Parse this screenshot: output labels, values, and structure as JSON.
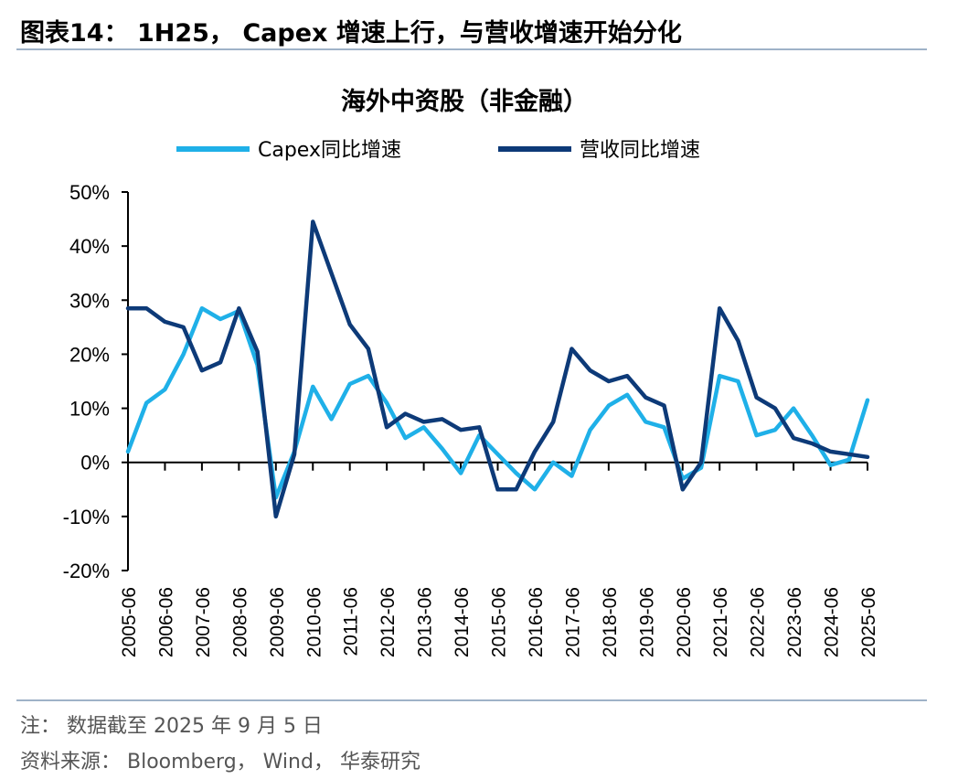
{
  "figure_title": "图表14：  1H25， Capex 增速上行，与营收增速开始分化",
  "footnote": "注：  数据截至 2025 年 9 月 5 日",
  "source": "资料来源：  Bloomberg， Wind， 华泰研究",
  "colors": {
    "capex": "#1fb0e8",
    "revenue": "#0d3a78",
    "rule": "#9fb2c8"
  },
  "chart_data": {
    "type": "line",
    "title": "海外中资股（非金融）",
    "xlabel": "",
    "ylabel": "",
    "ylim": [
      -20,
      50
    ],
    "ytick_values": [
      -20,
      -10,
      0,
      10,
      20,
      30,
      40,
      50
    ],
    "ytick_labels": [
      "-20%",
      "-10%",
      "0%",
      "10%",
      "20%",
      "30%",
      "40%",
      "50%"
    ],
    "x_labels": [
      "2005-06",
      "2006-06",
      "2007-06",
      "2008-06",
      "2009-06",
      "2010-06",
      "2011-06",
      "2012-06",
      "2013-06",
      "2014-06",
      "2015-06",
      "2016-06",
      "2017-06",
      "2018-06",
      "2019-06",
      "2020-06",
      "2021-06",
      "2022-06",
      "2023-06",
      "2024-06",
      "2025-06"
    ],
    "legend": [
      "Capex同比增速",
      "营收同比增速"
    ],
    "series": [
      {
        "name": "Capex同比增速",
        "values": [
          2,
          11,
          13.5,
          20,
          28.5,
          26.5,
          28,
          18,
          -6.5,
          2,
          14,
          8,
          14.5,
          16,
          11,
          4.5,
          6.5,
          2.5,
          -2,
          5,
          1.5,
          -2,
          -5,
          0,
          -2.5,
          6,
          10.5,
          12.5,
          7.5,
          6.5,
          -3,
          -1,
          16,
          15,
          5,
          6,
          10,
          5,
          -0.5,
          0.5,
          11.5
        ]
      },
      {
        "name": "营收同比增速",
        "values": [
          28.5,
          28.5,
          26,
          25,
          17,
          18.5,
          28.5,
          20.5,
          -10,
          1.5,
          44.5,
          35,
          25.5,
          21,
          6.5,
          9,
          7.5,
          8,
          6,
          6.5,
          -5,
          -5,
          2,
          7.5,
          21,
          17,
          15,
          16,
          12,
          10.5,
          -5,
          0,
          28.5,
          22.5,
          12,
          10,
          4.5,
          3.5,
          2,
          1.5,
          1
        ]
      }
    ]
  }
}
